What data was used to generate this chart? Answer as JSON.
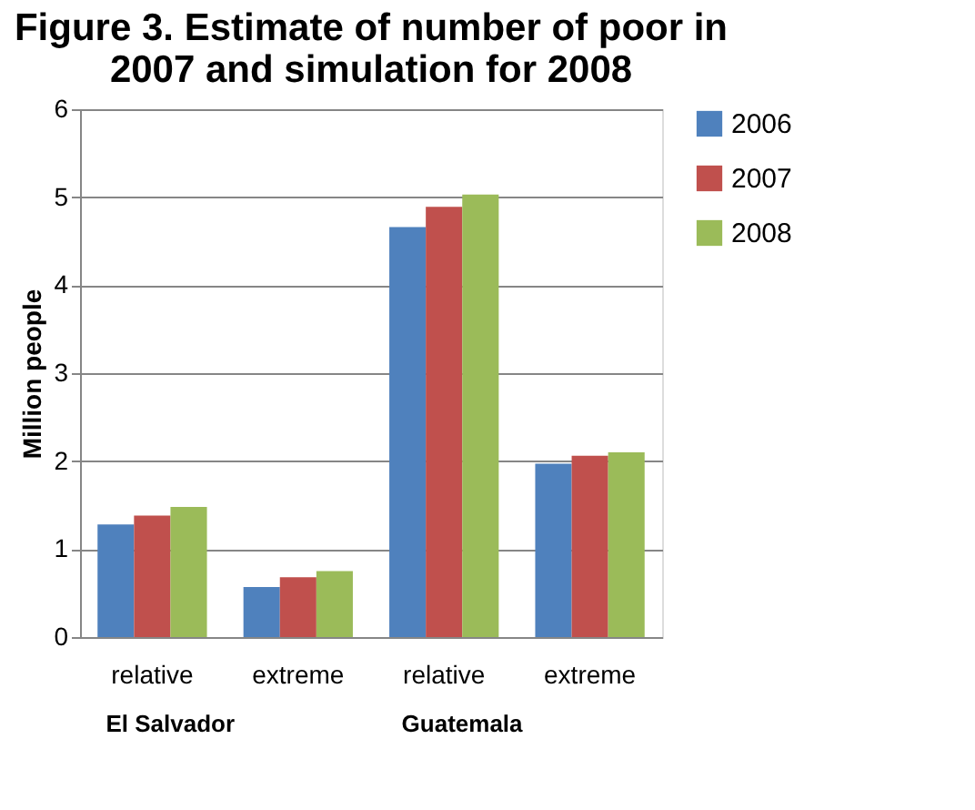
{
  "chart_data": {
    "type": "bar",
    "title": "Figure 3.  Estimate of number of poor in\n2007 and simulation for 2008",
    "categories": [
      "relative",
      "extreme",
      "relative",
      "extreme"
    ],
    "series": [
      {
        "name": "2006",
        "color": "#4f81bd",
        "values": [
          1.28,
          0.57,
          4.66,
          1.97
        ]
      },
      {
        "name": "2007",
        "color": "#c0504d",
        "values": [
          1.38,
          0.68,
          4.89,
          2.06
        ]
      },
      {
        "name": "2008",
        "color": "#9bbb59",
        "values": [
          1.48,
          0.75,
          5.03,
          2.1
        ]
      }
    ],
    "ylabel": "Million people",
    "ylim": [
      0,
      6
    ],
    "yticks": [
      0,
      1,
      2,
      3,
      4,
      5,
      6
    ],
    "grid": "y",
    "legend": "right",
    "annotations": [
      "El Salvador",
      "Guatemala"
    ]
  }
}
